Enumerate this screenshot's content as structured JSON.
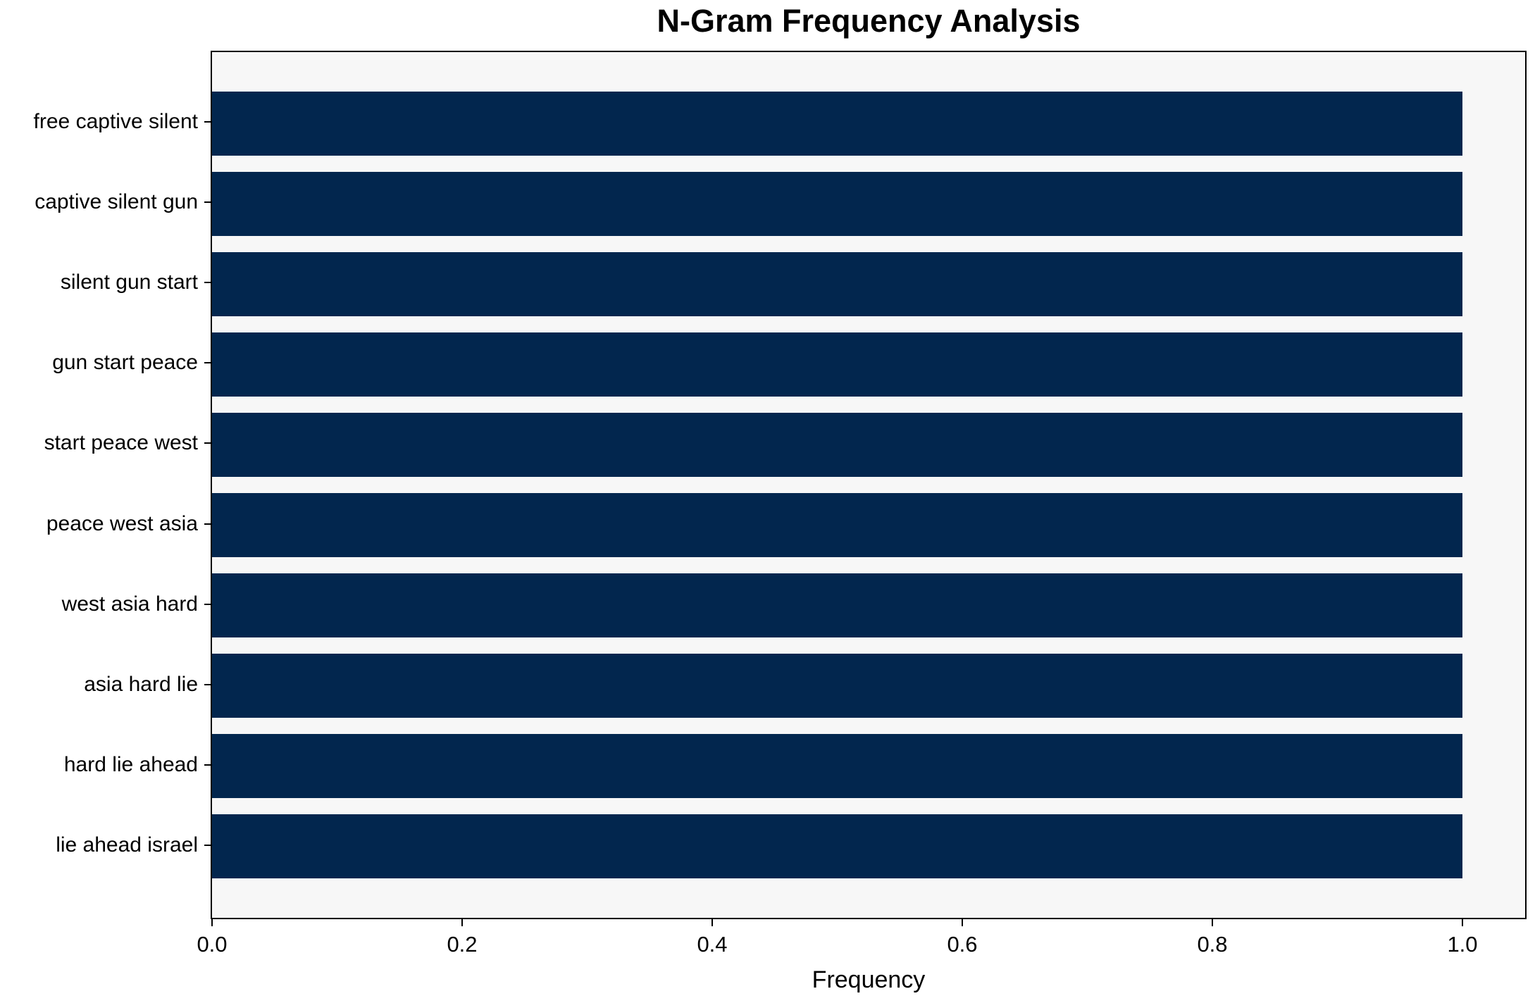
{
  "chart_data": {
    "type": "bar",
    "orientation": "horizontal",
    "title": "N-Gram Frequency Analysis",
    "xlabel": "Frequency",
    "ylabel": "",
    "categories": [
      "free captive silent",
      "captive silent gun",
      "silent gun start",
      "gun start peace",
      "start peace west",
      "peace west asia",
      "west asia hard",
      "asia hard lie",
      "hard lie ahead",
      "lie ahead israel"
    ],
    "values": [
      1.0,
      1.0,
      1.0,
      1.0,
      1.0,
      1.0,
      1.0,
      1.0,
      1.0,
      1.0
    ],
    "xticks": [
      0.0,
      0.2,
      0.4,
      0.6,
      0.8,
      1.0
    ],
    "xticklabels": [
      "0.0",
      "0.2",
      "0.4",
      "0.6",
      "0.8",
      "1.0"
    ],
    "xlim": [
      0,
      1.05
    ],
    "grid": false,
    "legend": null,
    "colors": {
      "bar": "#02264e",
      "plot_background": "#f7f7f7",
      "figure_background": "#ffffff",
      "axis": "#000000",
      "text": "#000000"
    }
  }
}
